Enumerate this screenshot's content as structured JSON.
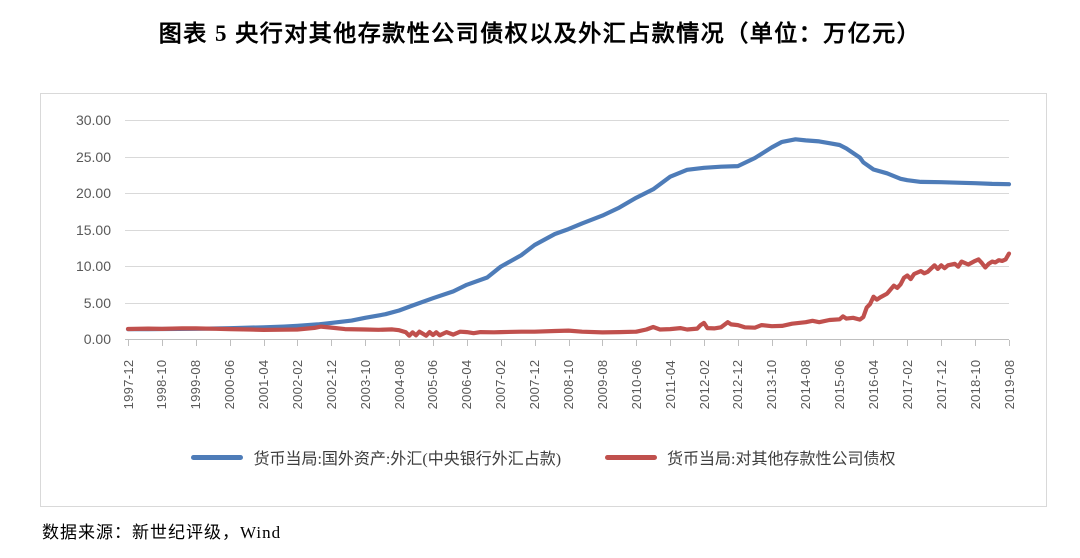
{
  "title": "图表 5  央行对其他存款性公司债权以及外汇占款情况（单位：万亿元）",
  "source": "数据来源：新世纪评级，Wind",
  "chart_data": {
    "type": "line",
    "title": "央行对其他存款性公司债权以及外汇占款情况",
    "unit": "万亿元",
    "ylim": [
      0,
      30
    ],
    "y_tick_step": 5,
    "y_tick_labels": [
      "0.00",
      "5.00",
      "10.00",
      "15.00",
      "20.00",
      "25.00",
      "30.00"
    ],
    "x_tick_labels": [
      "1997-12",
      "1998-10",
      "1999-08",
      "2000-06",
      "2001-04",
      "2002-02",
      "2002-12",
      "2003-10",
      "2004-08",
      "2005-06",
      "2006-04",
      "2007-02",
      "2007-12",
      "2008-10",
      "2009-08",
      "2010-06",
      "2011-04",
      "2012-02",
      "2012-12",
      "2013-10",
      "2014-08",
      "2015-06",
      "2016-04",
      "2017-02",
      "2017-12",
      "2018-10",
      "2019-08"
    ],
    "x_range_months": [
      "1997-12",
      "2019-08"
    ],
    "grid": "horizontal",
    "legend_position": "bottom",
    "series": [
      {
        "name": "货币当局:国外资产:外汇(中央银行外汇占款)",
        "color": "#4e7cb8",
        "points": [
          [
            "1997-12",
            1.35
          ],
          [
            "1998-06",
            1.35
          ],
          [
            "1998-10",
            1.37
          ],
          [
            "1999-08",
            1.4
          ],
          [
            "2000-06",
            1.48
          ],
          [
            "2001-04",
            1.6
          ],
          [
            "2001-10",
            1.7
          ],
          [
            "2002-02",
            1.8
          ],
          [
            "2002-08",
            2.0
          ],
          [
            "2002-12",
            2.21
          ],
          [
            "2003-06",
            2.52
          ],
          [
            "2003-10",
            2.9
          ],
          [
            "2004-04",
            3.4
          ],
          [
            "2004-08",
            3.9
          ],
          [
            "2004-12",
            4.59
          ],
          [
            "2005-06",
            5.59
          ],
          [
            "2005-12",
            6.52
          ],
          [
            "2006-04",
            7.42
          ],
          [
            "2006-10",
            8.42
          ],
          [
            "2007-02",
            9.9
          ],
          [
            "2007-08",
            11.47
          ],
          [
            "2007-12",
            12.87
          ],
          [
            "2008-06",
            14.38
          ],
          [
            "2008-10",
            15.05
          ],
          [
            "2009-02",
            15.83
          ],
          [
            "2009-08",
            16.9
          ],
          [
            "2010-01",
            18.0
          ],
          [
            "2010-06",
            19.36
          ],
          [
            "2010-11",
            20.5
          ],
          [
            "2011-04",
            22.23
          ],
          [
            "2011-09",
            23.18
          ],
          [
            "2012-02",
            23.45
          ],
          [
            "2012-07",
            23.6
          ],
          [
            "2012-12",
            23.69
          ],
          [
            "2013-05",
            24.8
          ],
          [
            "2013-10",
            26.24
          ],
          [
            "2014-01",
            27.0
          ],
          [
            "2014-05",
            27.35
          ],
          [
            "2014-08",
            27.21
          ],
          [
            "2014-12",
            27.07
          ],
          [
            "2015-03",
            26.82
          ],
          [
            "2015-06",
            26.57
          ],
          [
            "2015-08",
            26.1
          ],
          [
            "2015-12",
            24.85
          ],
          [
            "2016-01",
            24.2
          ],
          [
            "2016-04",
            23.22
          ],
          [
            "2016-08",
            22.7
          ],
          [
            "2016-12",
            21.94
          ],
          [
            "2017-02",
            21.75
          ],
          [
            "2017-06",
            21.52
          ],
          [
            "2017-12",
            21.48
          ],
          [
            "2018-06",
            21.4
          ],
          [
            "2018-10",
            21.34
          ],
          [
            "2019-03",
            21.25
          ],
          [
            "2019-08",
            21.2
          ]
        ]
      },
      {
        "name": "货币当局:对其他存款性公司债权",
        "color": "#c0504d",
        "points": [
          [
            "1997-12",
            1.37
          ],
          [
            "1998-06",
            1.42
          ],
          [
            "1998-10",
            1.39
          ],
          [
            "1999-04",
            1.46
          ],
          [
            "1999-08",
            1.45
          ],
          [
            "2000-02",
            1.4
          ],
          [
            "2000-06",
            1.35
          ],
          [
            "2000-12",
            1.3
          ],
          [
            "2001-04",
            1.25
          ],
          [
            "2001-10",
            1.28
          ],
          [
            "2002-02",
            1.3
          ],
          [
            "2002-07",
            1.52
          ],
          [
            "2002-09",
            1.7
          ],
          [
            "2002-12",
            1.56
          ],
          [
            "2003-04",
            1.36
          ],
          [
            "2003-10",
            1.3
          ],
          [
            "2004-02",
            1.26
          ],
          [
            "2004-06",
            1.31
          ],
          [
            "2004-08",
            1.2
          ],
          [
            "2004-10",
            0.92
          ],
          [
            "2004-11",
            0.45
          ],
          [
            "2004-12",
            0.9
          ],
          [
            "2005-01",
            0.5
          ],
          [
            "2005-02",
            1.0
          ],
          [
            "2005-04",
            0.45
          ],
          [
            "2005-05",
            0.95
          ],
          [
            "2005-06",
            0.55
          ],
          [
            "2005-07",
            0.92
          ],
          [
            "2005-08",
            0.5
          ],
          [
            "2005-10",
            0.95
          ],
          [
            "2005-12",
            0.6
          ],
          [
            "2006-02",
            1.0
          ],
          [
            "2006-04",
            0.95
          ],
          [
            "2006-06",
            0.8
          ],
          [
            "2006-08",
            0.95
          ],
          [
            "2006-12",
            0.92
          ],
          [
            "2007-02",
            0.95
          ],
          [
            "2007-08",
            1.0
          ],
          [
            "2007-12",
            1.0
          ],
          [
            "2008-06",
            1.1
          ],
          [
            "2008-10",
            1.15
          ],
          [
            "2009-02",
            1.0
          ],
          [
            "2009-08",
            0.9
          ],
          [
            "2010-01",
            0.95
          ],
          [
            "2010-06",
            1.0
          ],
          [
            "2010-09",
            1.3
          ],
          [
            "2010-11",
            1.65
          ],
          [
            "2011-01",
            1.3
          ],
          [
            "2011-04",
            1.36
          ],
          [
            "2011-07",
            1.5
          ],
          [
            "2011-09",
            1.3
          ],
          [
            "2011-12",
            1.42
          ],
          [
            "2012-01",
            1.9
          ],
          [
            "2012-02",
            2.2
          ],
          [
            "2012-03",
            1.5
          ],
          [
            "2012-05",
            1.45
          ],
          [
            "2012-07",
            1.6
          ],
          [
            "2012-09",
            2.3
          ],
          [
            "2012-10",
            2.0
          ],
          [
            "2012-12",
            1.9
          ],
          [
            "2013-02",
            1.6
          ],
          [
            "2013-05",
            1.55
          ],
          [
            "2013-07",
            1.9
          ],
          [
            "2013-10",
            1.76
          ],
          [
            "2014-01",
            1.8
          ],
          [
            "2014-04",
            2.1
          ],
          [
            "2014-08",
            2.3
          ],
          [
            "2014-10",
            2.5
          ],
          [
            "2014-12",
            2.3
          ],
          [
            "2015-03",
            2.6
          ],
          [
            "2015-06",
            2.7
          ],
          [
            "2015-07",
            3.1
          ],
          [
            "2015-08",
            2.8
          ],
          [
            "2015-10",
            2.9
          ],
          [
            "2015-12",
            2.66
          ],
          [
            "2016-01",
            3.0
          ],
          [
            "2016-02",
            4.3
          ],
          [
            "2016-03",
            4.8
          ],
          [
            "2016-04",
            5.8
          ],
          [
            "2016-05",
            5.4
          ],
          [
            "2016-06",
            5.7
          ],
          [
            "2016-08",
            6.2
          ],
          [
            "2016-10",
            7.3
          ],
          [
            "2016-11",
            7.0
          ],
          [
            "2016-12",
            7.5
          ],
          [
            "2017-01",
            8.4
          ],
          [
            "2017-02",
            8.7
          ],
          [
            "2017-03",
            8.2
          ],
          [
            "2017-04",
            8.9
          ],
          [
            "2017-06",
            9.3
          ],
          [
            "2017-07",
            9.0
          ],
          [
            "2017-08",
            9.2
          ],
          [
            "2017-10",
            10.1
          ],
          [
            "2017-11",
            9.6
          ],
          [
            "2017-12",
            10.1
          ],
          [
            "2018-01",
            9.7
          ],
          [
            "2018-02",
            10.1
          ],
          [
            "2018-04",
            10.3
          ],
          [
            "2018-05",
            9.9
          ],
          [
            "2018-06",
            10.6
          ],
          [
            "2018-08",
            10.2
          ],
          [
            "2018-10",
            10.7
          ],
          [
            "2018-11",
            10.9
          ],
          [
            "2018-12",
            10.4
          ],
          [
            "2019-01",
            9.8
          ],
          [
            "2019-02",
            10.3
          ],
          [
            "2019-03",
            10.6
          ],
          [
            "2019-04",
            10.5
          ],
          [
            "2019-05",
            10.8
          ],
          [
            "2019-06",
            10.7
          ],
          [
            "2019-07",
            10.9
          ],
          [
            "2019-08",
            11.7
          ]
        ]
      }
    ]
  }
}
